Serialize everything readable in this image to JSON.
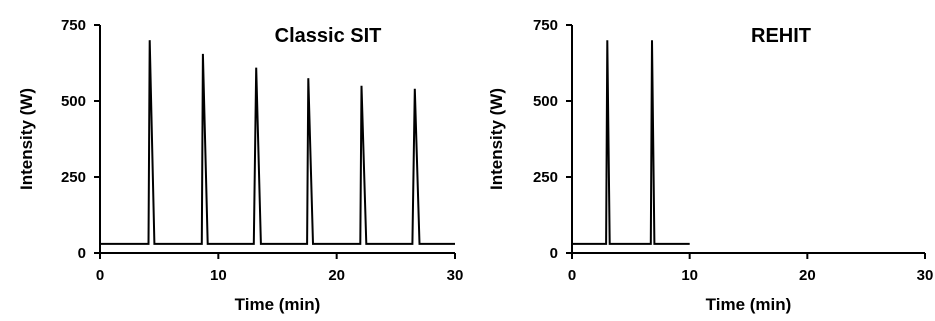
{
  "chart_data": [
    {
      "type": "line",
      "title": "Classic SIT",
      "xlabel": "Time (min)",
      "ylabel": "Intensity (W)",
      "xlim": [
        0,
        30
      ],
      "ylim": [
        0,
        750
      ],
      "xticks": [
        "0",
        "10",
        "20",
        "30"
      ],
      "yticks": [
        "0",
        "250",
        "500",
        "750"
      ],
      "grid": false,
      "line_color": "#000000",
      "series": [
        {
          "x": [
            0,
            4.1,
            4.2,
            4.6,
            8.6,
            8.7,
            9.1,
            13.0,
            13.2,
            13.6,
            17.5,
            17.6,
            18.0,
            22.0,
            22.1,
            22.5,
            26.4,
            26.6,
            27.0,
            30
          ],
          "y": [
            30,
            30,
            700,
            30,
            30,
            655,
            30,
            30,
            610,
            30,
            30,
            575,
            30,
            30,
            550,
            30,
            30,
            540,
            30,
            30
          ]
        }
      ]
    },
    {
      "type": "line",
      "title": "REHIT",
      "xlabel": "Time (min)",
      "ylabel": "Intensity (W)",
      "xlim": [
        0,
        30
      ],
      "ylim": [
        0,
        750
      ],
      "xticks": [
        "0",
        "10",
        "20",
        "30"
      ],
      "yticks": [
        "0",
        "250",
        "500",
        "750"
      ],
      "grid": false,
      "line_color": "#000000",
      "series": [
        {
          "x": [
            0,
            2.9,
            3.0,
            3.2,
            6.7,
            6.8,
            7.0,
            10
          ],
          "y": [
            30,
            30,
            700,
            30,
            30,
            700,
            30,
            30
          ]
        }
      ]
    }
  ]
}
